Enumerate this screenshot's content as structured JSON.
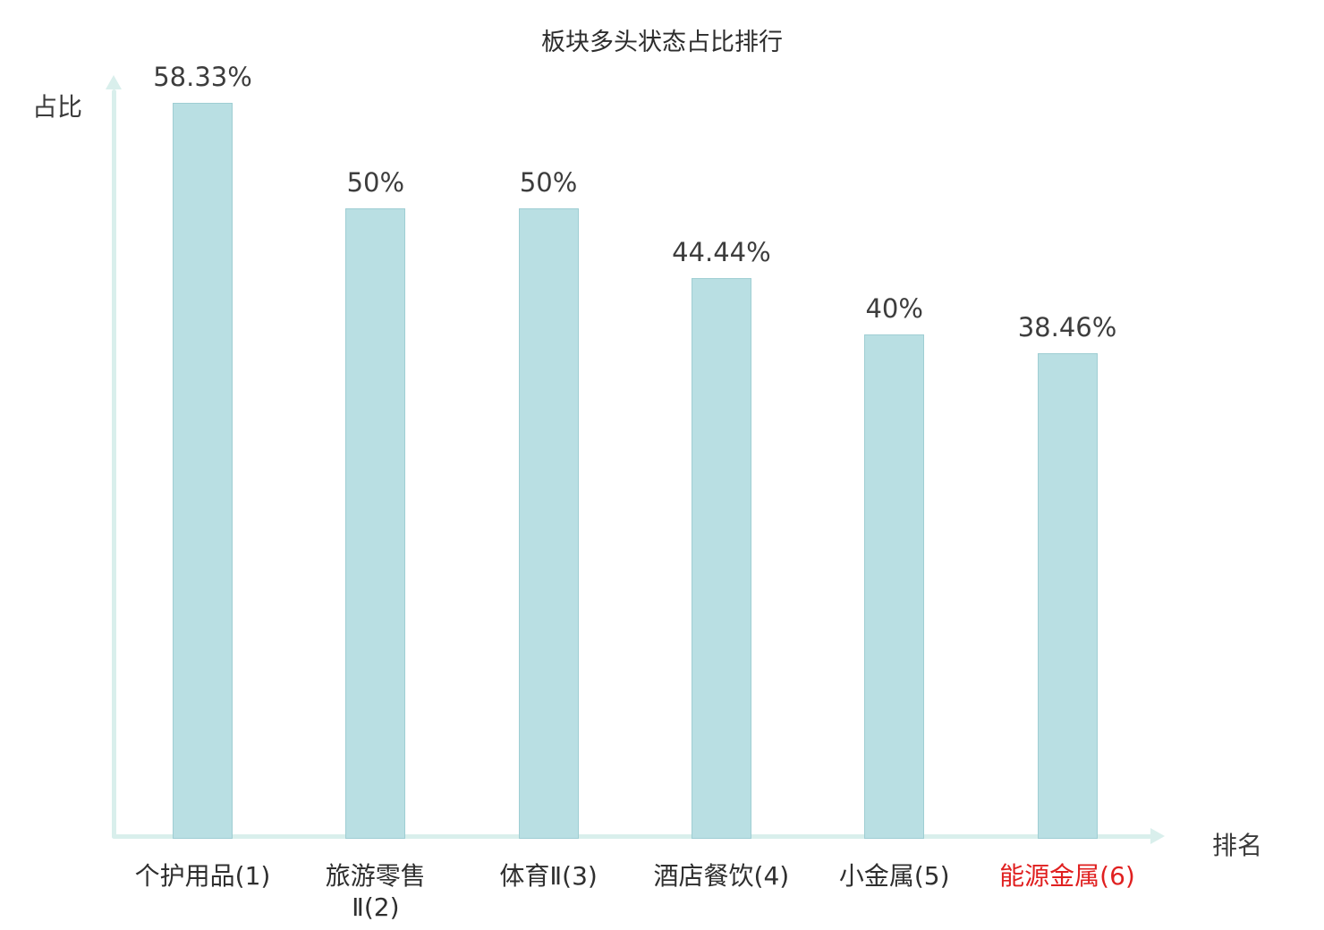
{
  "colors": {
    "bar_fill": "#b9dfe3",
    "bar_border": "#9fced3",
    "axis": "#d9efec",
    "text": "#3b3b3b",
    "highlight": "#e02020"
  },
  "chart_data": {
    "type": "bar",
    "title": "板块多头状态占比排行",
    "xlabel": "排名",
    "ylabel": "占比",
    "categories": [
      "个护用品(1)",
      "旅游零售\nⅡ(2)",
      "体育Ⅱ(3)",
      "酒店餐饮(4)",
      "小金属(5)",
      "能源金属(6)"
    ],
    "values": [
      58.33,
      50,
      50,
      44.44,
      40,
      38.46
    ],
    "value_labels": [
      "58.33%",
      "50%",
      "50%",
      "44.44%",
      "40%",
      "38.46%"
    ],
    "highlight_index": 5,
    "ylim": [
      0,
      65
    ],
    "grid": false,
    "legend": "none"
  }
}
